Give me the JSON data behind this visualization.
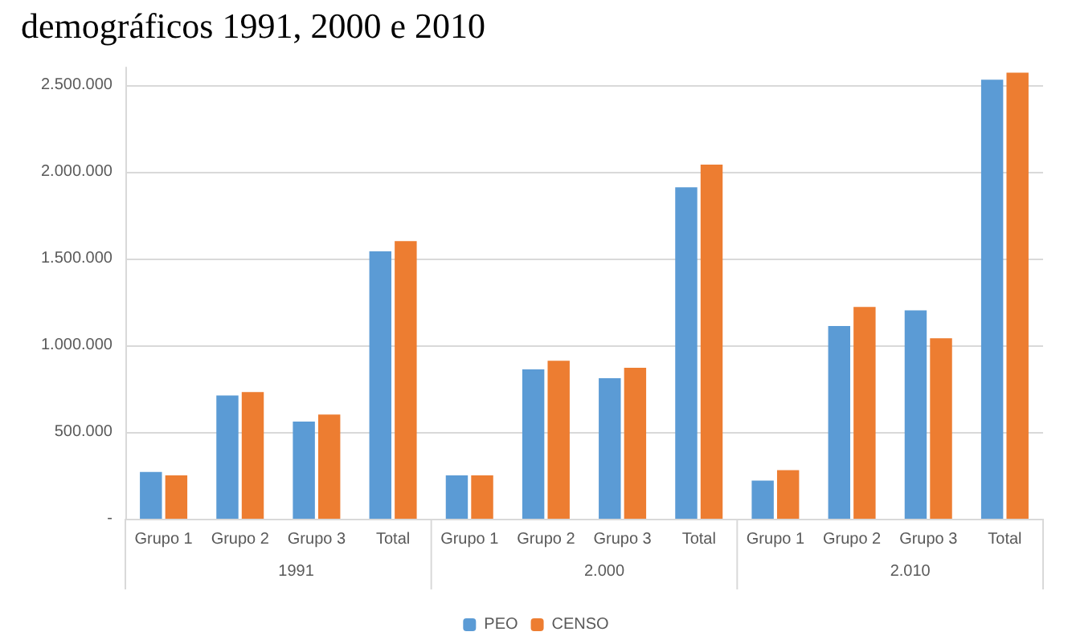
{
  "chart_data": {
    "type": "bar",
    "title": "demográficos 1991, 2000 e 2010",
    "categories": [
      "Grupo 1",
      "Grupo 2",
      "Grupo 3",
      "Total",
      "Grupo 1",
      "Grupo 2",
      "Grupo 3",
      "Total",
      "Grupo 1",
      "Grupo 2",
      "Grupo 3",
      "Total"
    ],
    "series": [
      {
        "name": "PEO",
        "color": "#5b9bd5",
        "values": [
          270000,
          710000,
          560000,
          1540000,
          250000,
          860000,
          810000,
          1910000,
          220000,
          1110000,
          1200000,
          2530000
        ]
      },
      {
        "name": "CENSO",
        "color": "#ed7d31",
        "values": [
          250000,
          730000,
          600000,
          1600000,
          250000,
          910000,
          870000,
          2040000,
          280000,
          1220000,
          1040000,
          2570000
        ]
      }
    ],
    "annotations": [
      "1991",
      "2.000",
      "2.010"
    ],
    "ylim": [
      0,
      2600000
    ],
    "yticks": [
      {
        "value": 0,
        "label": "-"
      },
      {
        "value": 500000,
        "label": "500.000"
      },
      {
        "value": 1000000,
        "label": "1.000.000"
      },
      {
        "value": 1500000,
        "label": "1.500.000"
      },
      {
        "value": 2000000,
        "label": "2.000.000"
      },
      {
        "value": 2500000,
        "label": "2.500.000"
      }
    ],
    "grid": "y",
    "legend": "bottom"
  }
}
